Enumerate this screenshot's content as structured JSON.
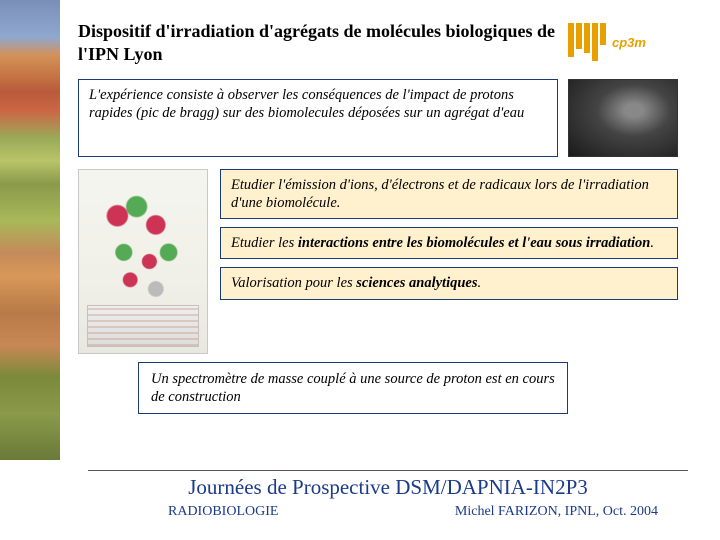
{
  "header": {
    "title": "Dispositif d'irradiation d'agrégats de molécules biologiques de l'IPN Lyon",
    "logo_label": "cp3m"
  },
  "description": "L'expérience consiste à observer les conséquences de l'impact de protons rapides (pic de bragg) sur des biomolecules déposées sur un agrégat d'eau",
  "boxes": {
    "b1_pre": "Etudier l'émission d'ions, d'électrons et de radicaux lors de l'irradiation d'une biomolécule.",
    "b2_pre": "Etudier les ",
    "b2_bold": "interactions entre les biomolécules et l'eau sous irradiation",
    "b2_post": ".",
    "b3_pre": "Valorisation pour les ",
    "b3_bold": "sciences analytiques",
    "b3_post": "."
  },
  "spectro": "Un spectromètre de masse couplé à une source de proton est en cours de construction",
  "footer": {
    "title": "Journées de Prospective DSM/DAPNIA-IN2P3",
    "left": "RADIOBIOLOGIE",
    "right": "Michel FARIZON, IPNL, Oct. 2004"
  },
  "colors": {
    "box_border": "#1a3a7a",
    "highlight_bg": "#fff1cd",
    "footer_text": "#1a3a8a",
    "logo_color": "#e8a000"
  }
}
